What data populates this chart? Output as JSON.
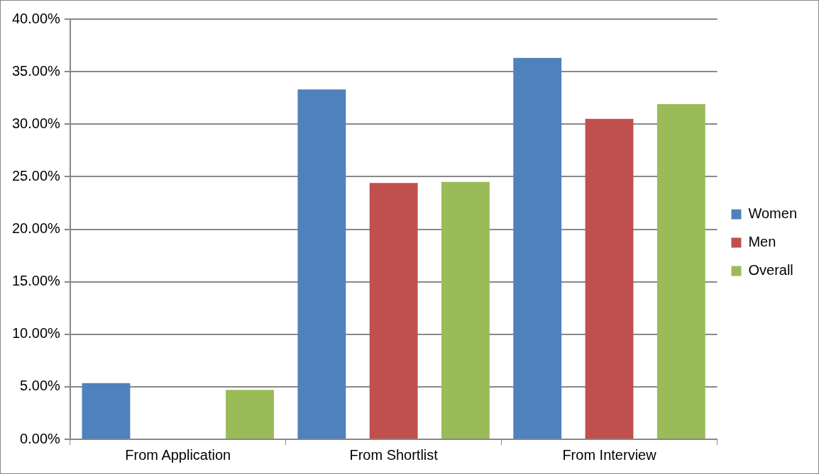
{
  "chart_data": {
    "type": "bar",
    "categories": [
      "From Application",
      "From Shortlist",
      "From Interview"
    ],
    "series": [
      {
        "name": "Women",
        "color": "#4f81bd",
        "values": [
          5.35,
          33.3,
          36.3
        ]
      },
      {
        "name": "Men",
        "color": "#c0504d",
        "values": [
          0,
          24.4,
          30.5
        ]
      },
      {
        "name": "Overall",
        "color": "#9bbb59",
        "values": [
          4.7,
          24.5,
          31.9
        ]
      }
    ],
    "ylim": [
      0,
      40
    ],
    "yticks": [
      {
        "value": 0,
        "label": "0.00%"
      },
      {
        "value": 5,
        "label": "5.00%"
      },
      {
        "value": 10,
        "label": "10.00%"
      },
      {
        "value": 15,
        "label": "15.00%"
      },
      {
        "value": 20,
        "label": "20.00%"
      },
      {
        "value": 25,
        "label": "25.00%"
      },
      {
        "value": 30,
        "label": "30.00%"
      },
      {
        "value": 35,
        "label": "35.00%"
      },
      {
        "value": 40,
        "label": "40.00%"
      }
    ],
    "grid": "y",
    "legend": "right"
  }
}
